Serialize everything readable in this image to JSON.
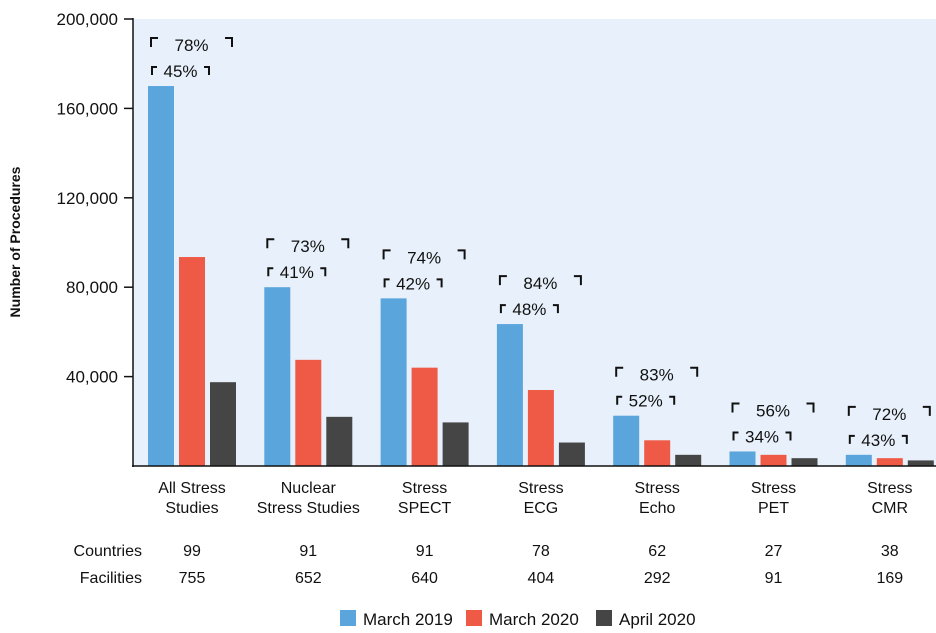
{
  "chart_data": {
    "type": "bar",
    "ylabel": "Number of Procedures",
    "ylim": [
      0,
      200000
    ],
    "yticks": [
      40000,
      80000,
      120000,
      160000,
      200000
    ],
    "ytick_labels": [
      "40,000",
      "80,000",
      "120,000",
      "160,000",
      "200,000"
    ],
    "categories": [
      [
        "All Stress",
        "Studies"
      ],
      [
        "Nuclear",
        "Stress Studies"
      ],
      [
        "Stress",
        "SPECT"
      ],
      [
        "Stress",
        "ECG"
      ],
      [
        "Stress",
        "Echo"
      ],
      [
        "Stress",
        "PET"
      ],
      [
        "Stress",
        "CMR"
      ]
    ],
    "series": [
      {
        "name": "March 2019",
        "color": "#5aa5dc",
        "values": [
          170000,
          80000,
          75000,
          63500,
          22500,
          6500,
          5000
        ]
      },
      {
        "name": "March 2020",
        "color": "#ee5a45",
        "values": [
          93500,
          47500,
          44000,
          34000,
          11500,
          5000,
          3500
        ]
      },
      {
        "name": "April 2020",
        "color": "#454545",
        "values": [
          37500,
          22000,
          19500,
          10500,
          5000,
          3500,
          2500
        ]
      }
    ],
    "annotations": {
      "outer": [
        "78%",
        "73%",
        "74%",
        "84%",
        "83%",
        "56%",
        "72%"
      ],
      "inner": [
        "45%",
        "41%",
        "42%",
        "48%",
        "52%",
        "34%",
        "43%"
      ]
    },
    "table": {
      "rows": [
        {
          "label": "Countries",
          "values": [
            "99",
            "91",
            "91",
            "78",
            "62",
            "27",
            "38"
          ]
        },
        {
          "label": "Facilities",
          "values": [
            "755",
            "652",
            "640",
            "404",
            "292",
            "91",
            "169"
          ]
        }
      ]
    },
    "plot_background": "#e8f1fb",
    "grid": false,
    "legend_position": "bottom-center"
  }
}
